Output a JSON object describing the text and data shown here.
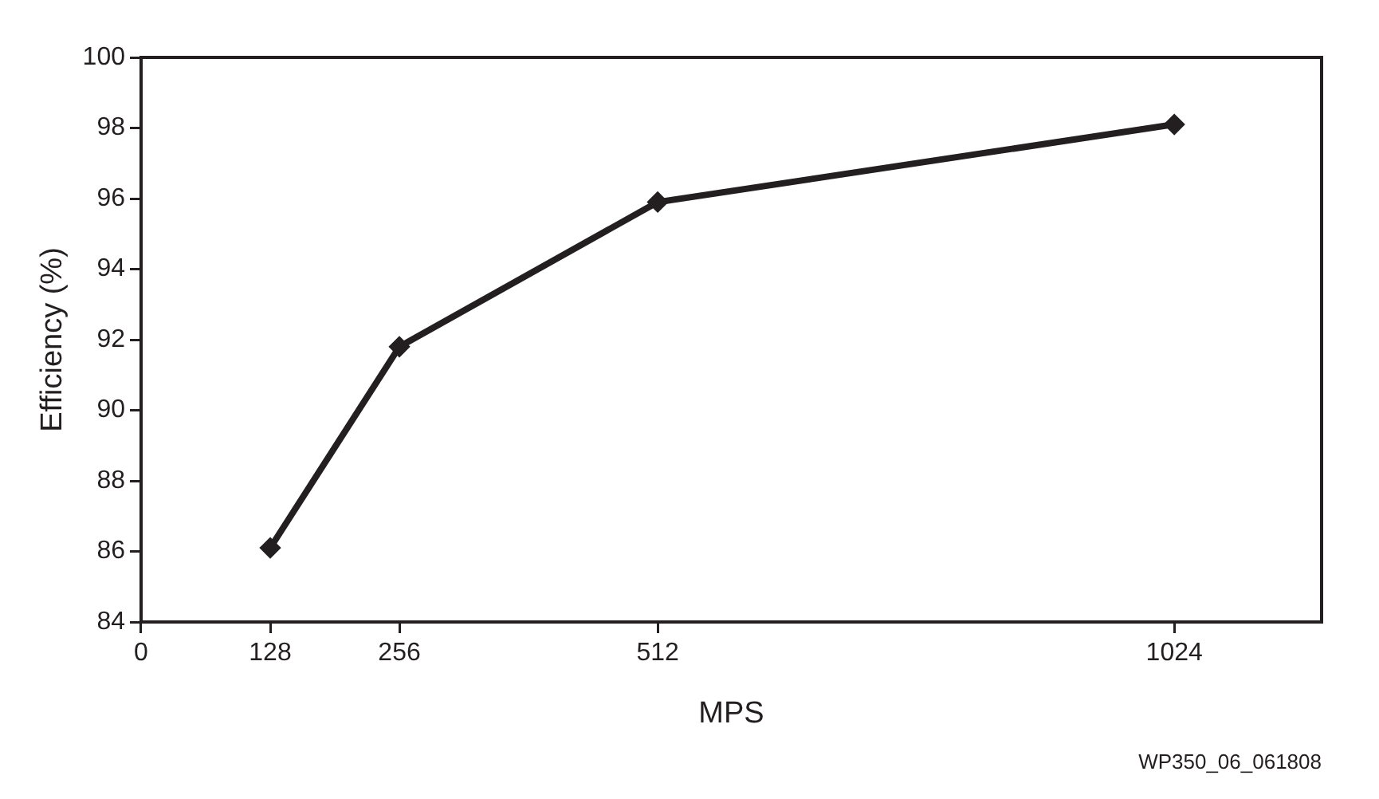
{
  "chart_data": {
    "type": "line",
    "xlabel": "MPS",
    "ylabel": "Efficiency (%)",
    "x": [
      128,
      256,
      512,
      1024
    ],
    "series": [
      {
        "color": "#231f20",
        "values": [
          86.1,
          91.8,
          95.9,
          98.1
        ]
      }
    ],
    "xlim": [
      0,
      1170
    ],
    "xticks": [
      0,
      128,
      256,
      512,
      1024
    ],
    "ylim": [
      84,
      100
    ],
    "yticks": [
      84,
      86,
      88,
      90,
      92,
      94,
      96,
      98,
      100
    ],
    "grid": false,
    "legend": false,
    "marker": "diamond",
    "line_style": "solid",
    "annotations": [
      "WP350_06_061808"
    ]
  }
}
